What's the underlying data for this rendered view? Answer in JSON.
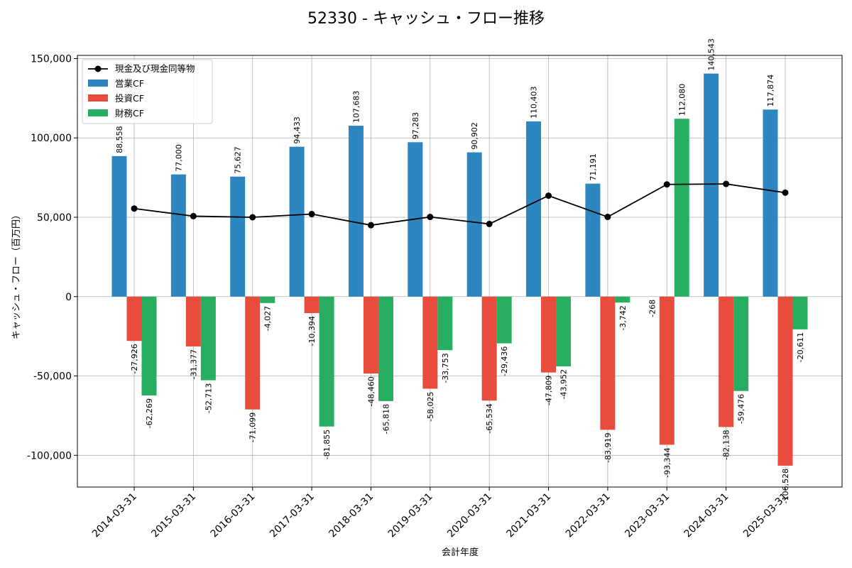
{
  "chart_data": {
    "type": "bar",
    "title": "52330 - キャッシュ・フロー推移",
    "xlabel": "会計年度",
    "ylabel": "キャッシュ・フロー（百万円）",
    "ylim": [
      -120000,
      152000
    ],
    "yticks": [
      -100000,
      -50000,
      0,
      50000,
      100000,
      150000
    ],
    "ytick_labels": [
      "-100,000",
      "-50,000",
      "0",
      "50,000",
      "100,000",
      "150,000"
    ],
    "grid": true,
    "legend_position": "top-left",
    "categories": [
      "2014-03-31",
      "2015-03-31",
      "2016-03-31",
      "2017-03-31",
      "2018-03-31",
      "2019-03-31",
      "2020-03-31",
      "2021-03-31",
      "2022-03-31",
      "2023-03-31",
      "2024-03-31",
      "2025-03-31"
    ],
    "line_series": {
      "name": "現金及び現金同等物",
      "color": "#000000",
      "values": [
        55500,
        50700,
        50000,
        52000,
        45000,
        50200,
        45800,
        63600,
        50200,
        70700,
        71000,
        65500
      ]
    },
    "series": [
      {
        "name": "営業CF",
        "color": "#2e86c1",
        "values": [
          88558,
          77000,
          75627,
          94433,
          107683,
          97283,
          90902,
          110403,
          71191,
          null,
          140543,
          117874
        ],
        "labels": [
          "88,558",
          "77,000",
          "75,627",
          "94,433",
          "107,683",
          "97,283",
          "90,902",
          "110,403",
          "71,191",
          "",
          "140,543",
          "117,874"
        ]
      },
      {
        "name": "投資CF",
        "color": "#e74c3c",
        "values": [
          -27926,
          -31377,
          -71099,
          -10394,
          -48460,
          -58025,
          -65534,
          -47809,
          -83919,
          -93344,
          -82138,
          -106528
        ],
        "labels": [
          "-27,926",
          "-31,377",
          "-71,099",
          "-10,394",
          "-48,460",
          "-58,025",
          "-65,534",
          "-47,809",
          "-83,919",
          "-93,344",
          "-82,138",
          "-106,528"
        ]
      },
      {
        "name": "財務CF",
        "color": "#27ae60",
        "values": [
          -62269,
          -52713,
          -4027,
          -81855,
          -65818,
          -33753,
          -29436,
          -43952,
          -3742,
          112080,
          -59476,
          -20611
        ],
        "labels": [
          "-62,269",
          "-52,713",
          "-4,027",
          "-81,855",
          "-65,818",
          "-33,753",
          "-29,436",
          "-43,952",
          "-3,742",
          "112,080",
          "-59,476",
          "-20,611"
        ]
      }
    ],
    "annotations": [
      {
        "text": "-268",
        "category": "2023-03-31",
        "y": 0
      }
    ]
  }
}
